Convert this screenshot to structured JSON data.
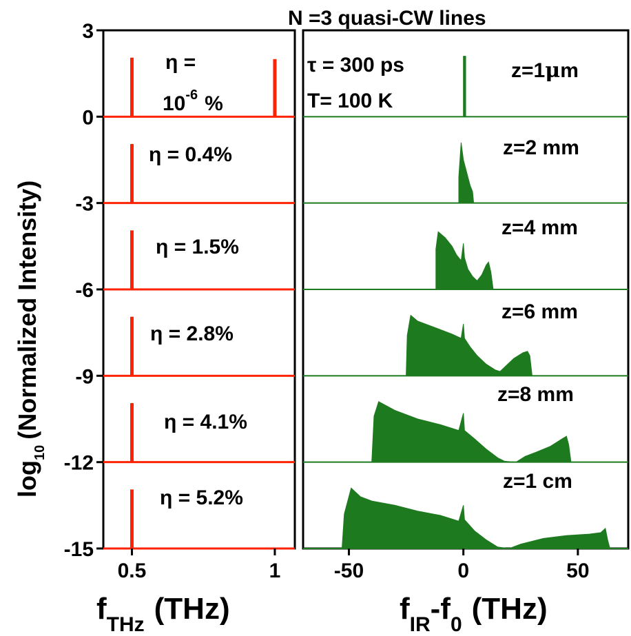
{
  "chart_data": [
    {
      "type": "bar",
      "panel": "thz",
      "ylabel_main": "log",
      "ylabel_sub": "10",
      "ylabel_rest": "(Normalized Intensity)",
      "xlabel_main": "f",
      "xlabel_sub": "THz",
      "xlabel_rest": "(THz)",
      "xticks": [
        "0.5",
        "1"
      ],
      "ytick_values": [
        3,
        0,
        -3,
        -6,
        -9,
        -12,
        -15
      ],
      "ytick_labels": [
        "3",
        "0",
        "-3",
        "-6",
        "-9",
        "-12",
        "-15"
      ],
      "ylim": [
        -15,
        3
      ],
      "xlim": [
        0.4,
        1.07
      ],
      "color": "#ff2200",
      "series": [
        {
          "label": "η =",
          "label_line2_main": "10",
          "label_line2_sup": "-6",
          "label_line2_tail": "%",
          "baseline": 0,
          "spikes": [
            {
              "x": 0.5,
              "height": 2.05
            },
            {
              "x": 1.0,
              "height": 2.0
            }
          ]
        },
        {
          "label": "η = 0.4%",
          "baseline": -3,
          "spikes": [
            {
              "x": 0.5,
              "height": 2.05
            }
          ]
        },
        {
          "label": "η = 1.5%",
          "baseline": -6,
          "spikes": [
            {
              "x": 0.5,
              "height": 2.05
            }
          ]
        },
        {
          "label": "η = 2.8%",
          "baseline": -9,
          "spikes": [
            {
              "x": 0.5,
              "height": 2.05
            }
          ]
        },
        {
          "label": "η = 4.1%",
          "baseline": -12,
          "spikes": [
            {
              "x": 0.5,
              "height": 2.05
            }
          ]
        },
        {
          "label": "η = 5.2%",
          "baseline": -15,
          "spikes": [
            {
              "x": 0.5,
              "height": 2.05
            }
          ]
        }
      ]
    },
    {
      "type": "area",
      "panel": "ir",
      "title": "N =3 quasi-CW lines",
      "annotation_tau": "τ = 300 ps",
      "annotation_T": "T= 100 K",
      "xlabel_main": "f",
      "xlabel_sub1": "IR",
      "xlabel_mid": "-f",
      "xlabel_sub2": "0",
      "xlabel_rest": "(THz)",
      "xticks": [
        -50,
        0,
        50
      ],
      "xtick_labels": [
        "-50",
        "0",
        "50"
      ],
      "xlim": [
        -70,
        72
      ],
      "color": "#1e7a1e",
      "series": [
        {
          "label": "z=1μm",
          "label_main": "z=1",
          "label_mu": "μ",
          "label_tail": "m",
          "baseline": 0,
          "points": [
            [
              0.0,
              0.0
            ],
            [
              0.0,
              2.1
            ],
            [
              1.0,
              2.1
            ],
            [
              1.0,
              0.0
            ]
          ]
        },
        {
          "label": "z=2 mm",
          "baseline": -3,
          "points": [
            [
              -2.0,
              0.0
            ],
            [
              -2.0,
              0.9
            ],
            [
              -1.0,
              2.1
            ],
            [
              0.0,
              1.5
            ],
            [
              1.0,
              1.2
            ],
            [
              2.0,
              0.9
            ],
            [
              3.0,
              0.6
            ],
            [
              4.0,
              0.4
            ],
            [
              4.5,
              0.0
            ]
          ]
        },
        {
          "label": "z=4 mm",
          "baseline": -6,
          "points": [
            [
              -12.0,
              0.0
            ],
            [
              -12.0,
              1.4
            ],
            [
              -11.0,
              2.0
            ],
            [
              -8.0,
              1.8
            ],
            [
              -5.0,
              1.5
            ],
            [
              -3.0,
              1.2
            ],
            [
              -1.0,
              1.0
            ],
            [
              0.0,
              1.6
            ],
            [
              0.5,
              1.1
            ],
            [
              2.0,
              0.7
            ],
            [
              4.0,
              0.45
            ],
            [
              6.0,
              0.3
            ],
            [
              8.0,
              0.5
            ],
            [
              10.0,
              0.85
            ],
            [
              11.0,
              0.95
            ],
            [
              12.0,
              0.6
            ],
            [
              13.0,
              0.0
            ]
          ]
        },
        {
          "label": "z=6 mm",
          "baseline": -9,
          "points": [
            [
              -25.0,
              0.0
            ],
            [
              -24.5,
              1.4
            ],
            [
              -23.0,
              2.1
            ],
            [
              -20.0,
              1.9
            ],
            [
              -15.0,
              1.75
            ],
            [
              -10.0,
              1.6
            ],
            [
              -5.0,
              1.45
            ],
            [
              -1.0,
              1.3
            ],
            [
              0.0,
              1.8
            ],
            [
              0.5,
              1.3
            ],
            [
              3.0,
              1.0
            ],
            [
              6.0,
              0.7
            ],
            [
              10.0,
              0.4
            ],
            [
              14.0,
              0.2
            ],
            [
              16.0,
              0.15
            ],
            [
              18.0,
              0.3
            ],
            [
              22.0,
              0.6
            ],
            [
              26.0,
              0.8
            ],
            [
              28.0,
              0.85
            ],
            [
              29.0,
              0.7
            ],
            [
              30.0,
              0.0
            ]
          ]
        },
        {
          "label": "z=8 mm",
          "baseline": -12,
          "points": [
            [
              -40.0,
              0.0
            ],
            [
              -39.0,
              1.6
            ],
            [
              -37.0,
              2.1
            ],
            [
              -30.0,
              1.8
            ],
            [
              -20.0,
              1.5
            ],
            [
              -10.0,
              1.3
            ],
            [
              -2.0,
              1.1
            ],
            [
              0.0,
              1.7
            ],
            [
              0.5,
              1.1
            ],
            [
              5.0,
              0.8
            ],
            [
              10.0,
              0.45
            ],
            [
              15.0,
              0.15
            ],
            [
              18.0,
              0.03
            ],
            [
              23.0,
              0.0
            ],
            [
              27.0,
              0.2
            ],
            [
              32.0,
              0.35
            ],
            [
              38.0,
              0.55
            ],
            [
              43.0,
              0.8
            ],
            [
              45.0,
              0.9
            ],
            [
              46.0,
              0.6
            ],
            [
              47.0,
              0.0
            ]
          ]
        },
        {
          "label": "z=1 cm",
          "baseline": -15,
          "points": [
            [
              -53.0,
              0.0
            ],
            [
              -52.0,
              1.2
            ],
            [
              -49.0,
              2.1
            ],
            [
              -45.0,
              1.8
            ],
            [
              -40.0,
              1.65
            ],
            [
              -30.0,
              1.5
            ],
            [
              -20.0,
              1.3
            ],
            [
              -10.0,
              1.15
            ],
            [
              -2.0,
              0.95
            ],
            [
              0.0,
              1.5
            ],
            [
              0.5,
              1.0
            ],
            [
              5.0,
              0.6
            ],
            [
              10.0,
              0.3
            ],
            [
              15.0,
              0.05
            ],
            [
              20.0,
              0.0
            ],
            [
              25.0,
              0.15
            ],
            [
              35.0,
              0.35
            ],
            [
              45.0,
              0.45
            ],
            [
              55.0,
              0.5
            ],
            [
              60.0,
              0.55
            ],
            [
              62.0,
              0.7
            ],
            [
              63.0,
              0.3
            ],
            [
              64.0,
              0.0
            ]
          ]
        }
      ]
    }
  ]
}
